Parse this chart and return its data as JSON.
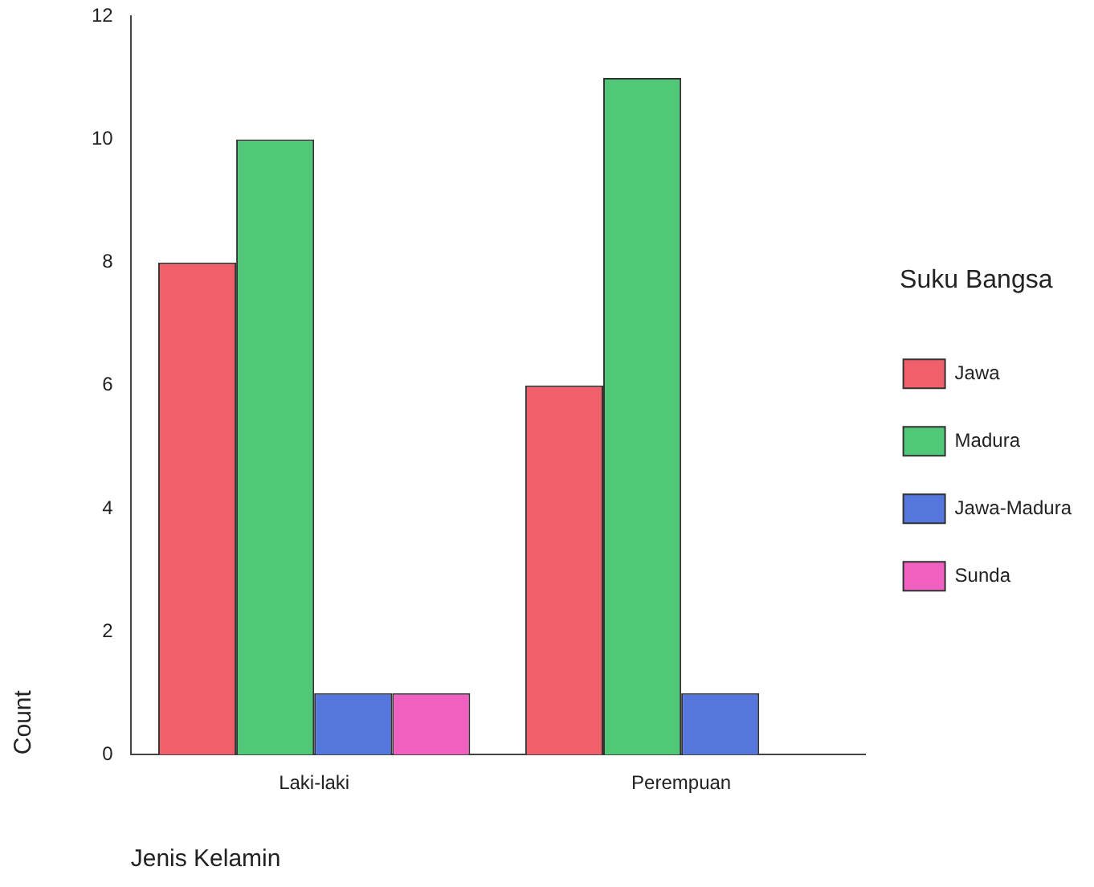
{
  "chart_data": {
    "type": "bar",
    "xlabel": "Jenis Kelamin",
    "ylabel": "Count",
    "legend_title": "Suku Bangsa",
    "categories": [
      "Laki-laki",
      "Perempuan"
    ],
    "series": [
      {
        "name": "Jawa",
        "color": "#f0606a",
        "values": [
          8,
          6
        ]
      },
      {
        "name": "Madura",
        "color": "#50c878",
        "values": [
          10,
          11
        ]
      },
      {
        "name": "Jawa-Madura",
        "color": "#5577dd",
        "values": [
          1,
          1
        ]
      },
      {
        "name": "Sunda",
        "color": "#f060c0",
        "values": [
          1,
          0
        ]
      }
    ],
    "ylim": [
      0,
      12
    ],
    "yticks": [
      0,
      2,
      4,
      6,
      8,
      10,
      12
    ],
    "grid": false,
    "legend": "right"
  }
}
